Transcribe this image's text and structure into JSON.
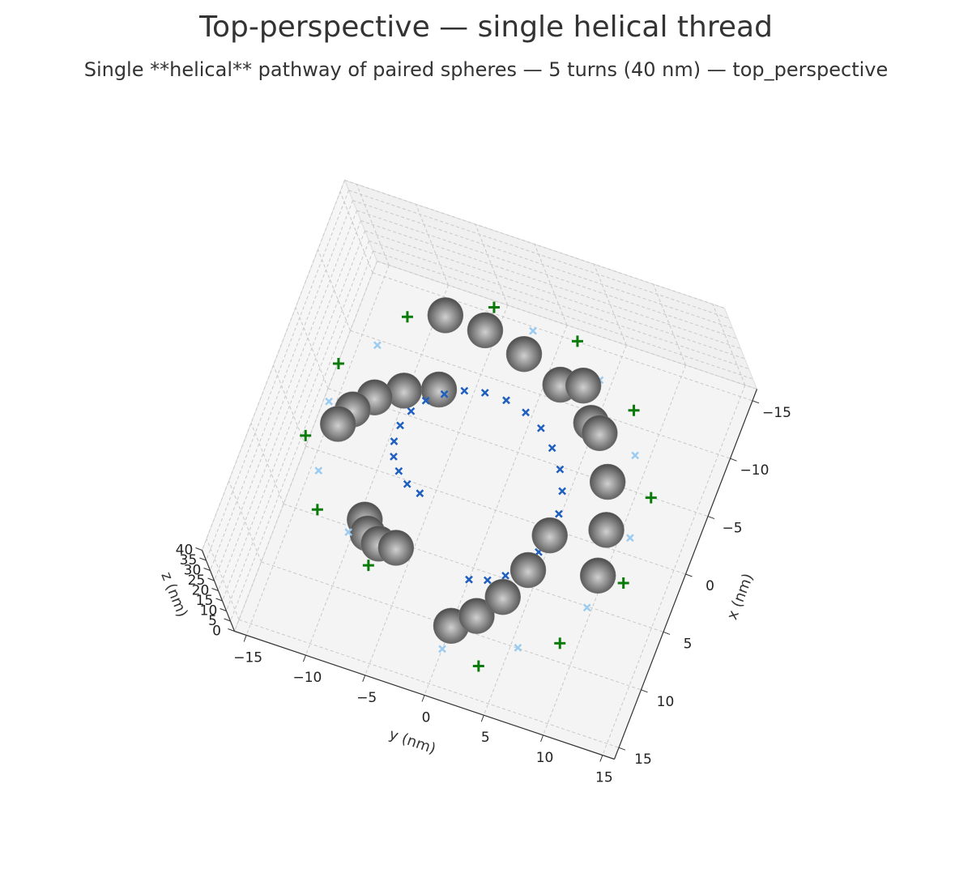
{
  "chart_data": {
    "type": "scatter3d",
    "title": "Top-perspective — single helical thread",
    "subtitle": "Single **helical** pathway of paired spheres — 5 turns (40 nm) — top_perspective",
    "xlabel": "x (nm)",
    "ylabel": "y (nm)",
    "zlabel": "z (nm)",
    "xlim": [
      -16,
      16
    ],
    "ylim": [
      -16,
      16
    ],
    "zlim": [
      0,
      40
    ],
    "xticks": [
      {
        "value": -15,
        "label": "−15"
      },
      {
        "value": -10,
        "label": "−10"
      },
      {
        "value": -5,
        "label": "−5"
      },
      0,
      5,
      10,
      15
    ],
    "yticks": [
      {
        "value": -15,
        "label": "−15"
      },
      {
        "value": -10,
        "label": "−10"
      },
      {
        "value": -5,
        "label": "−5"
      },
      0,
      5,
      10,
      15
    ],
    "zticks": [
      0,
      5,
      10,
      15,
      20,
      25,
      30,
      35,
      40
    ],
    "grid": true,
    "series": [
      {
        "color": "#1f5fbf",
        "marker": "x",
        "x": [
          6,
          5.8,
          5.2,
          4.2,
          3,
          1.6,
          0,
          -1.6,
          -3,
          -4.2,
          -5.2,
          -5.8,
          -6,
          -5.8,
          -5.2,
          -4.2,
          -3,
          -1.6,
          0,
          1.6,
          3,
          4.2,
          5.2,
          5.8
        ],
        "y": [
          0,
          1.6,
          3,
          4.2,
          5.2,
          5.8,
          6,
          5.8,
          5.2,
          4.2,
          3,
          1.6,
          0,
          -1.6,
          -3,
          -4.2,
          -5.2,
          -5.8,
          -6,
          -5.8,
          -5.2,
          -4.2,
          -3,
          -1.6
        ],
        "z": [
          0,
          1.7,
          3.3,
          5,
          6.7,
          8.3,
          10,
          11.7,
          13.3,
          15,
          16.7,
          18.3,
          20,
          21.7,
          23.3,
          25,
          26.7,
          28.3,
          30,
          31.7,
          33.3,
          35,
          36.7,
          38.3
        ]
      },
      {
        "color": "#9ccbf0",
        "marker": "x",
        "x": [
          12,
          10.4,
          6,
          0,
          -6,
          -10.4,
          -12,
          -10.4,
          -6,
          0,
          6,
          10.4
        ],
        "y": [
          0,
          6,
          10.4,
          12,
          10.4,
          6,
          0,
          -6,
          -10.4,
          -12,
          -10.4,
          -6
        ],
        "z": [
          0,
          3.3,
          6.7,
          10,
          13.3,
          16.7,
          20,
          23.3,
          26.7,
          30,
          33.3,
          36.7
        ]
      },
      {
        "color": "#0a7a0a",
        "marker": "plus",
        "x": [
          12.6,
          9.2,
          3.4,
          -3.4,
          -9.2,
          -12.6,
          -12.6,
          -9.2,
          -3.4,
          3.4,
          9.2,
          12.6
        ],
        "y": [
          3.4,
          9.2,
          12.6,
          12.6,
          9.2,
          3.4,
          -3.4,
          -9.2,
          -12.6,
          -12.6,
          -9.2,
          -3.4
        ],
        "z": [
          1.7,
          5,
          8.3,
          11.6,
          14.9,
          18.2,
          21.5,
          24.8,
          28.1,
          31.4,
          34.7,
          38
        ]
      },
      {
        "color": "#808080",
        "marker": "sphere",
        "x": [
          10,
          2.6,
          -8.7,
          -7.1,
          5,
          9.7,
          0,
          -9.7,
          -5,
          7.1,
          8.7,
          -2.6,
          -10,
          -2.6,
          8.7,
          7.1,
          -5,
          -9.7,
          0,
          9.7,
          5,
          -7.1,
          -8.7,
          2.6
        ],
        "y": [
          0,
          9.7,
          5,
          -7.1,
          -8.7,
          2.6,
          10,
          2.6,
          -8.7,
          -7.1,
          5,
          9.7,
          0,
          -9.7,
          -5,
          7.1,
          8.7,
          -2.6,
          -10,
          -2.6,
          8.7,
          7.1,
          -5,
          -9.7
        ],
        "z": [
          0,
          1.7,
          3.3,
          5,
          6.7,
          8.3,
          10,
          11.7,
          13.3,
          15,
          16.7,
          18.3,
          20,
          21.7,
          23.3,
          25,
          26.7,
          28.3,
          30,
          31.7,
          33.3,
          35,
          36.7,
          38.3
        ]
      }
    ]
  }
}
